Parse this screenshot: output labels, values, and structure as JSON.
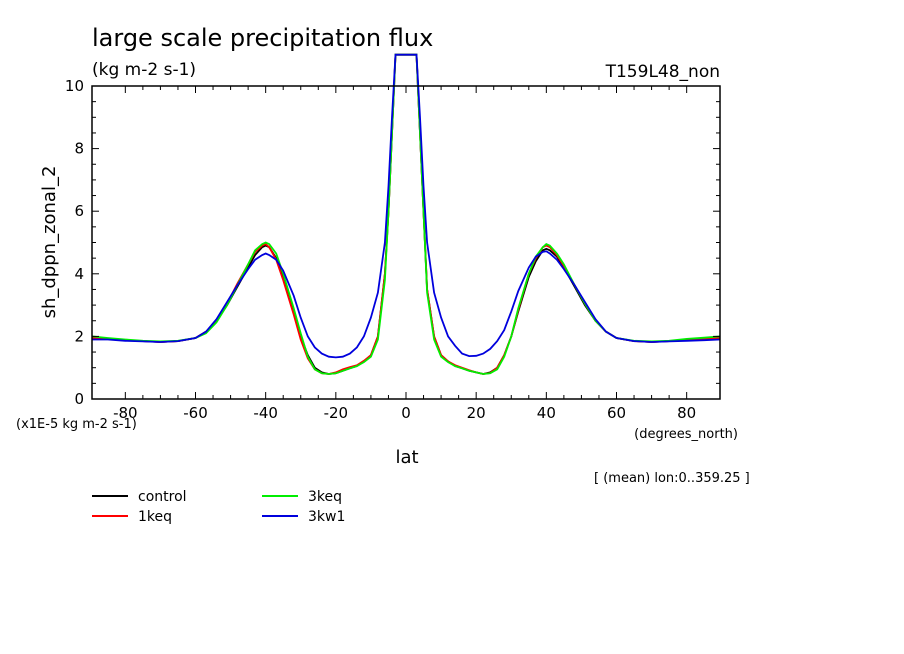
{
  "chart_data": {
    "type": "line",
    "title": "large scale precipitation flux",
    "units": "(kg m-2 s-1)",
    "run_label": "T159L48_non",
    "ylabel": "sh_dppn_zonal_2",
    "xlabel": "lat",
    "x_units": "(degrees_north)",
    "scale_note": "(x1E-5 kg m-2 s-1)",
    "footnote": "[ (mean) lon:0..359.25 ]",
    "xlim": [
      -89.5,
      89.5
    ],
    "ylim": [
      0,
      10
    ],
    "xticks": [
      -80,
      -60,
      -40,
      -20,
      0,
      20,
      40,
      60,
      80
    ],
    "yticks": [
      0,
      2,
      4,
      6,
      8,
      10
    ],
    "x": [
      -89.5,
      -85,
      -80,
      -75,
      -70,
      -65,
      -60,
      -57,
      -54,
      -51,
      -48,
      -45,
      -43,
      -41,
      -40,
      -39,
      -37,
      -35,
      -32,
      -30,
      -28,
      -26,
      -24,
      -22,
      -20,
      -18,
      -16,
      -14,
      -12,
      -10,
      -8,
      -6,
      -5,
      -4,
      -3,
      3,
      4,
      5,
      6,
      8,
      10,
      12,
      14,
      16,
      18,
      20,
      22,
      24,
      26,
      28,
      30,
      32,
      35,
      37,
      39,
      40,
      41,
      43,
      45,
      48,
      51,
      54,
      57,
      60,
      65,
      70,
      75,
      80,
      85,
      89.5
    ],
    "series": [
      {
        "name": "control",
        "color": "#000000",
        "values": [
          1.95,
          1.92,
          1.88,
          1.85,
          1.82,
          1.85,
          1.95,
          2.15,
          2.5,
          3.0,
          3.6,
          4.2,
          4.6,
          4.85,
          4.9,
          4.85,
          4.5,
          3.9,
          2.8,
          2.0,
          1.4,
          1.0,
          0.85,
          0.8,
          0.82,
          0.9,
          0.98,
          1.05,
          1.2,
          1.4,
          2.0,
          4.0,
          6.0,
          8.5,
          11.0,
          11.0,
          8.5,
          6.0,
          3.5,
          2.0,
          1.4,
          1.2,
          1.05,
          0.98,
          0.9,
          0.85,
          0.8,
          0.85,
          1.0,
          1.4,
          2.0,
          2.8,
          3.9,
          4.4,
          4.75,
          4.8,
          4.75,
          4.55,
          4.2,
          3.6,
          3.0,
          2.5,
          2.15,
          1.95,
          1.85,
          1.82,
          1.85,
          1.9,
          1.92,
          1.95
        ]
      },
      {
        "name": "1keq",
        "color": "#ff0000",
        "values": [
          1.95,
          1.92,
          1.88,
          1.85,
          1.82,
          1.85,
          1.95,
          2.15,
          2.5,
          3.05,
          3.7,
          4.3,
          4.7,
          4.9,
          4.95,
          4.85,
          4.45,
          3.8,
          2.7,
          1.9,
          1.3,
          0.95,
          0.82,
          0.8,
          0.85,
          0.95,
          1.02,
          1.08,
          1.22,
          1.4,
          2.0,
          4.0,
          6.0,
          8.5,
          11.0,
          11.0,
          8.5,
          6.0,
          3.5,
          2.0,
          1.4,
          1.2,
          1.08,
          1.0,
          0.92,
          0.85,
          0.8,
          0.83,
          1.0,
          1.4,
          2.0,
          2.85,
          4.0,
          4.5,
          4.85,
          4.9,
          4.85,
          4.6,
          4.25,
          3.65,
          3.05,
          2.5,
          2.15,
          1.95,
          1.85,
          1.82,
          1.85,
          1.9,
          1.93,
          1.95
        ]
      },
      {
        "name": "3keq",
        "color": "#00ee00",
        "values": [
          2.0,
          1.95,
          1.9,
          1.86,
          1.84,
          1.86,
          1.95,
          2.1,
          2.45,
          3.0,
          3.65,
          4.3,
          4.75,
          4.95,
          5.0,
          4.95,
          4.65,
          4.0,
          2.9,
          2.1,
          1.35,
          0.95,
          0.82,
          0.8,
          0.82,
          0.9,
          0.98,
          1.05,
          1.18,
          1.35,
          1.9,
          3.8,
          6.0,
          8.5,
          11.0,
          11.0,
          8.5,
          6.0,
          3.4,
          1.9,
          1.35,
          1.18,
          1.05,
          0.98,
          0.9,
          0.85,
          0.8,
          0.82,
          0.95,
          1.35,
          2.0,
          2.9,
          4.0,
          4.55,
          4.85,
          4.95,
          4.9,
          4.65,
          4.3,
          3.65,
          3.05,
          2.5,
          2.15,
          1.95,
          1.86,
          1.84,
          1.86,
          1.92,
          1.96,
          2.0
        ]
      },
      {
        "name": "3kw1",
        "color": "#0000dd",
        "values": [
          1.9,
          1.9,
          1.86,
          1.84,
          1.82,
          1.85,
          1.95,
          2.15,
          2.55,
          3.1,
          3.65,
          4.15,
          4.45,
          4.6,
          4.65,
          4.6,
          4.45,
          4.1,
          3.3,
          2.6,
          2.0,
          1.65,
          1.45,
          1.35,
          1.33,
          1.35,
          1.45,
          1.65,
          2.0,
          2.6,
          3.4,
          5.0,
          6.8,
          9.0,
          11.0,
          11.0,
          9.0,
          6.8,
          5.0,
          3.4,
          2.6,
          2.0,
          1.7,
          1.45,
          1.37,
          1.38,
          1.45,
          1.6,
          1.85,
          2.2,
          2.8,
          3.45,
          4.2,
          4.55,
          4.7,
          4.72,
          4.65,
          4.45,
          4.15,
          3.65,
          3.1,
          2.55,
          2.15,
          1.95,
          1.85,
          1.82,
          1.84,
          1.86,
          1.88,
          1.9
        ]
      }
    ]
  }
}
